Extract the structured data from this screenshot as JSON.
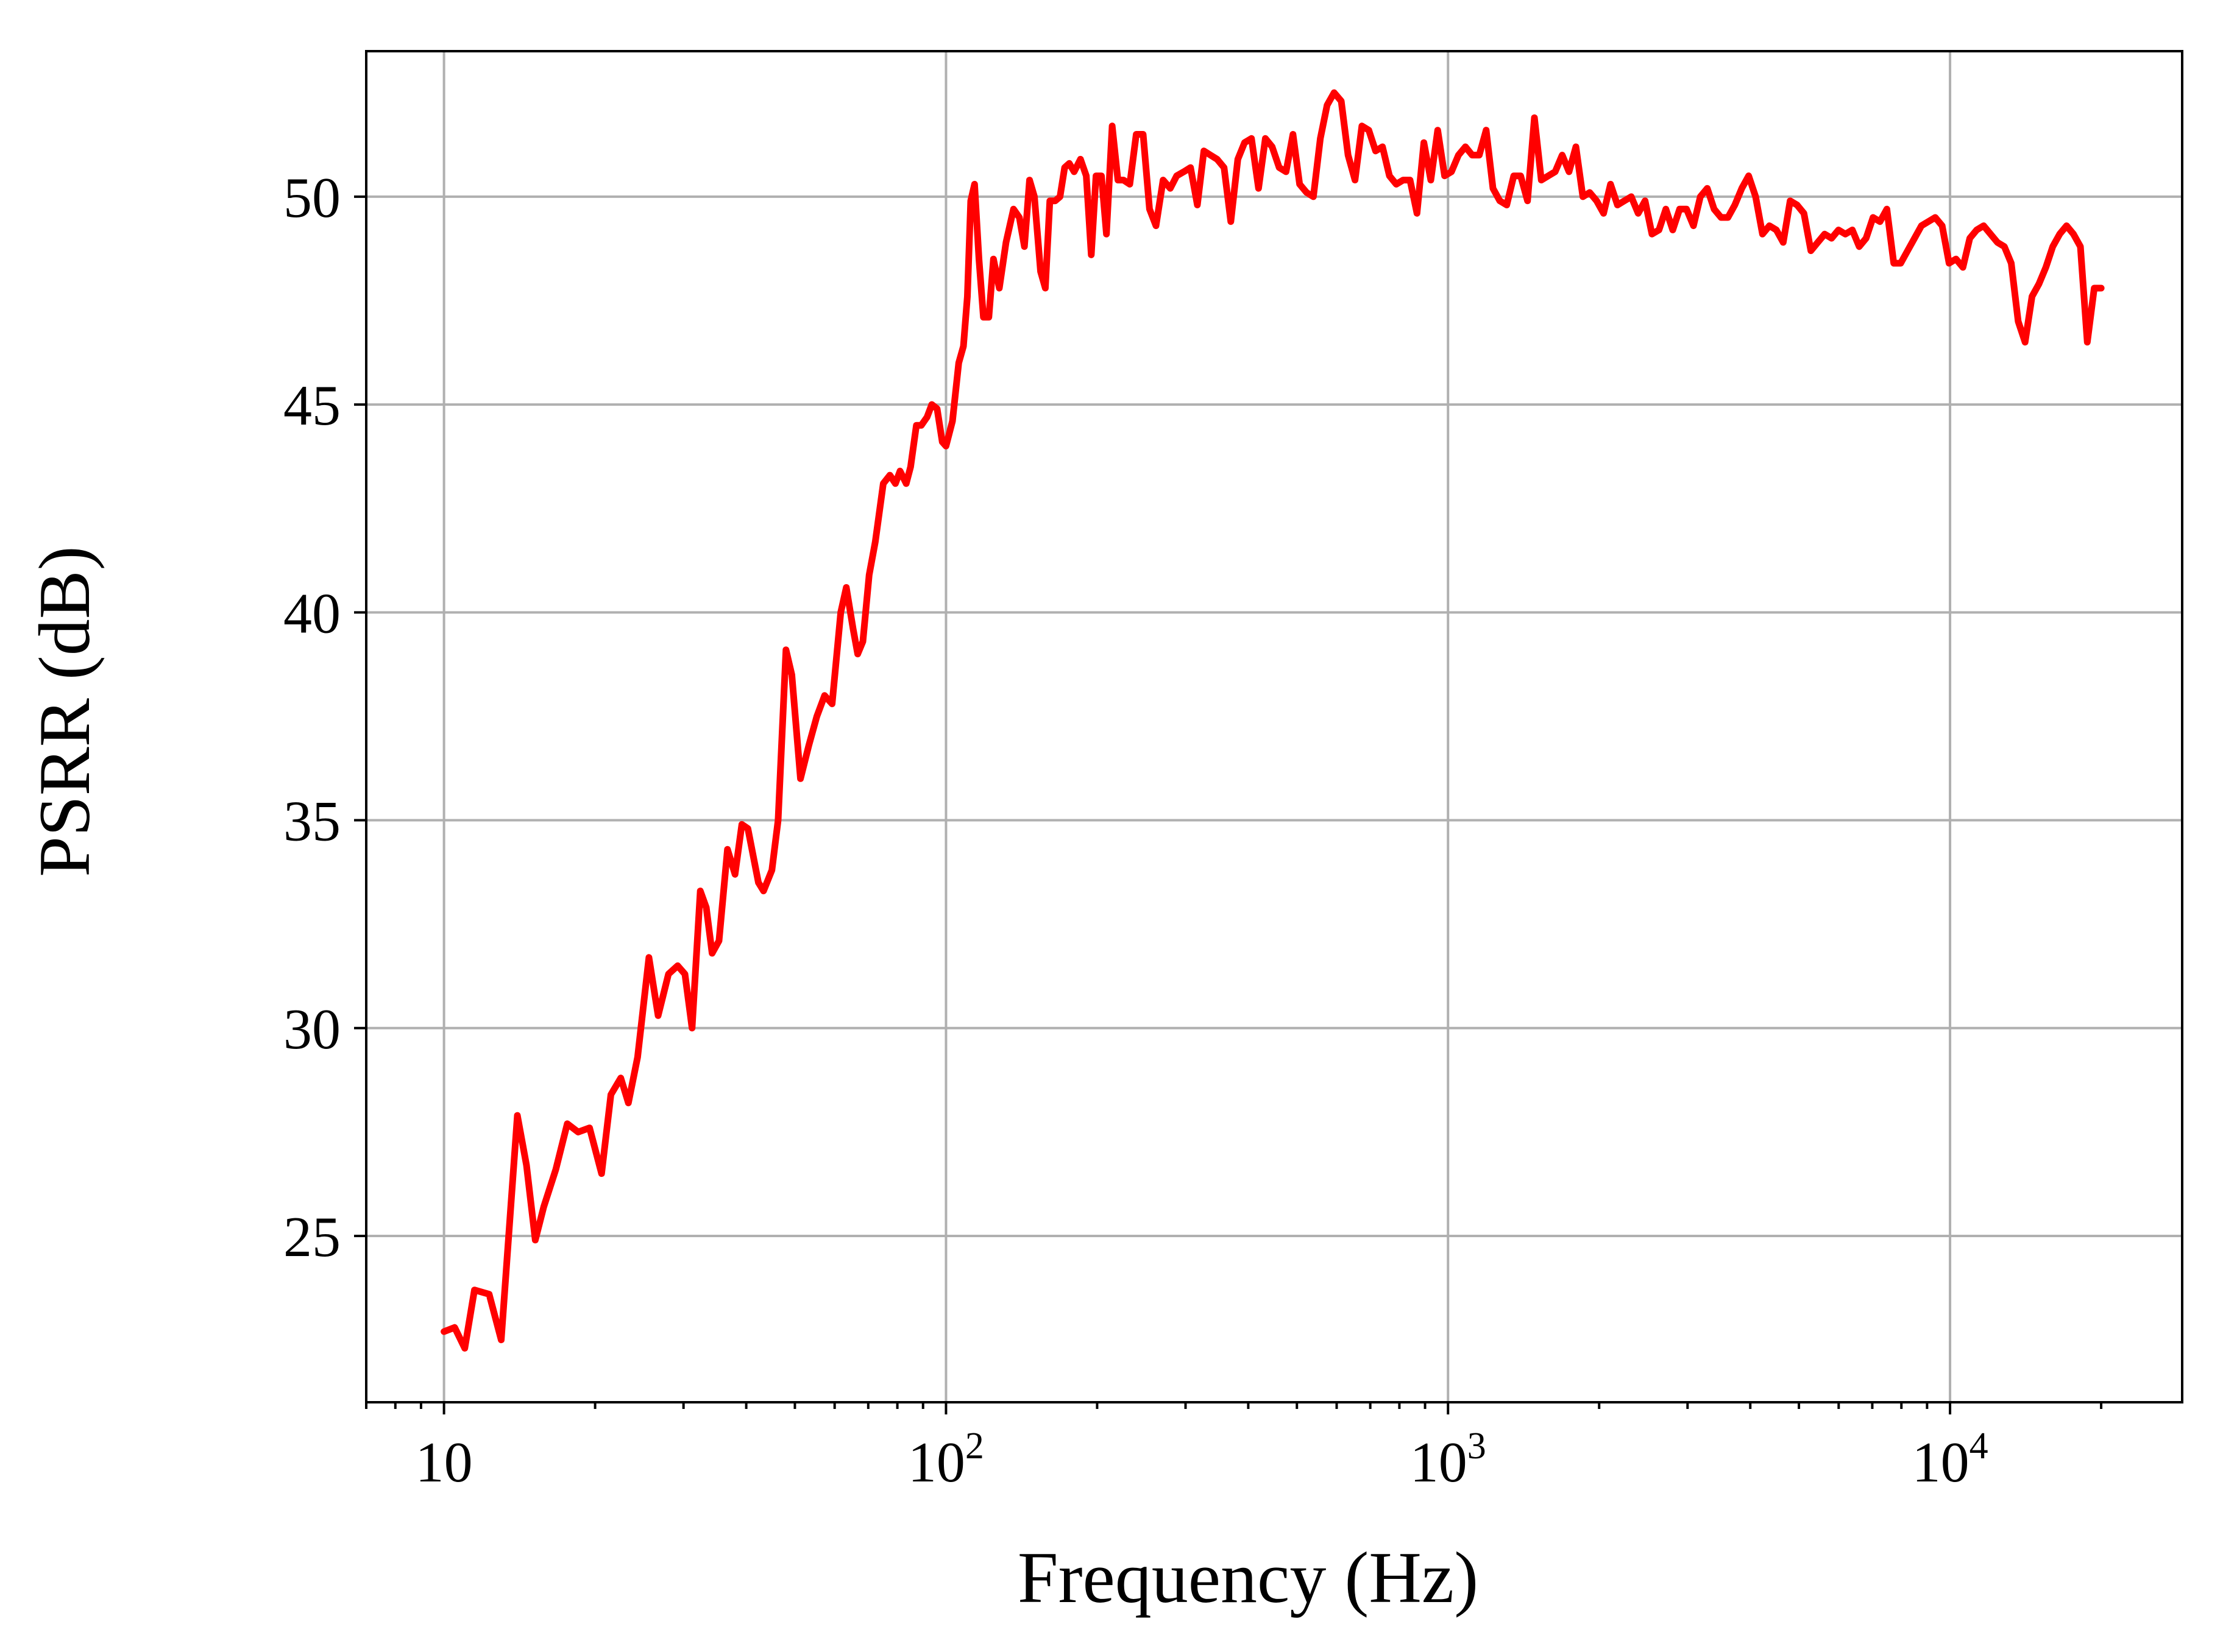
{
  "chart_data": {
    "type": "line",
    "title": "",
    "xlabel": "Frequency (Hz)",
    "ylabel": "PSRR (dB)",
    "xscale": "log",
    "xlim": [
      7,
      29000
    ],
    "ylim": [
      21,
      53.5
    ],
    "grid": true,
    "legend": "none",
    "x_ticks": [
      {
        "value": 10,
        "base": "10",
        "exp": ""
      },
      {
        "value": 100,
        "base": "10",
        "exp": "2"
      },
      {
        "value": 1000,
        "base": "10",
        "exp": "3"
      },
      {
        "value": 10000,
        "base": "10",
        "exp": "4"
      }
    ],
    "y_ticks": [
      {
        "value": 25,
        "label": "25"
      },
      {
        "value": 30,
        "label": "30"
      },
      {
        "value": 35,
        "label": "35"
      },
      {
        "value": 40,
        "label": "40"
      },
      {
        "value": 45,
        "label": "45"
      },
      {
        "value": 50,
        "label": "50"
      }
    ],
    "series": [
      {
        "color": "#ff0000",
        "points": [
          [
            10.0,
            22.7
          ],
          [
            10.5,
            22.8
          ],
          [
            11.0,
            22.3
          ],
          [
            11.5,
            23.7
          ],
          [
            12.3,
            23.6
          ],
          [
            13.0,
            22.5
          ],
          [
            14.0,
            27.9
          ],
          [
            14.6,
            26.7
          ],
          [
            15.2,
            24.9
          ],
          [
            15.8,
            25.7
          ],
          [
            16.7,
            26.6
          ],
          [
            17.6,
            27.7
          ],
          [
            18.5,
            27.5
          ],
          [
            19.5,
            27.6
          ],
          [
            20.6,
            26.5
          ],
          [
            21.5,
            28.4
          ],
          [
            22.5,
            28.8
          ],
          [
            23.3,
            28.2
          ],
          [
            24.3,
            29.3
          ],
          [
            25.6,
            31.7
          ],
          [
            26.7,
            30.3
          ],
          [
            28.0,
            31.3
          ],
          [
            29.2,
            31.5
          ],
          [
            30.2,
            31.3
          ],
          [
            31.2,
            30.0
          ],
          [
            32.4,
            33.3
          ],
          [
            33.3,
            32.9
          ],
          [
            34.2,
            31.8
          ],
          [
            35.3,
            32.1
          ],
          [
            36.7,
            34.3
          ],
          [
            38.0,
            33.7
          ],
          [
            39.2,
            34.9
          ],
          [
            40.3,
            34.8
          ],
          [
            42.3,
            33.5
          ],
          [
            43.3,
            33.3
          ],
          [
            45.0,
            33.8
          ],
          [
            46.3,
            35.0
          ],
          [
            48.0,
            39.1
          ],
          [
            49.3,
            38.5
          ],
          [
            51.3,
            36.0
          ],
          [
            53.3,
            36.8
          ],
          [
            55.3,
            37.5
          ],
          [
            57.3,
            38.0
          ],
          [
            59.3,
            37.8
          ],
          [
            61.7,
            40.0
          ],
          [
            63.3,
            40.6
          ],
          [
            65.3,
            39.6
          ],
          [
            66.7,
            39.0
          ],
          [
            68.3,
            39.3
          ],
          [
            70.3,
            40.9
          ],
          [
            72.3,
            41.7
          ],
          [
            75.0,
            43.1
          ],
          [
            77.3,
            43.3
          ],
          [
            79.3,
            43.1
          ],
          [
            81.0,
            43.4
          ],
          [
            83.3,
            43.1
          ],
          [
            85.0,
            43.5
          ],
          [
            87.3,
            44.5
          ],
          [
            89.3,
            44.5
          ],
          [
            91.7,
            44.7
          ],
          [
            93.7,
            45.0
          ],
          [
            96.0,
            44.9
          ],
          [
            98.3,
            44.1
          ],
          [
            100.0,
            44.0
          ],
          [
            103.0,
            44.6
          ],
          [
            106.0,
            46.0
          ],
          [
            108.3,
            46.4
          ],
          [
            110.3,
            47.6
          ],
          [
            112.0,
            49.9
          ],
          [
            114.0,
            50.3
          ],
          [
            116.3,
            48.5
          ],
          [
            118.7,
            47.1
          ],
          [
            121.7,
            47.1
          ],
          [
            124.3,
            48.5
          ],
          [
            127.7,
            47.8
          ],
          [
            131.7,
            48.9
          ],
          [
            136.3,
            49.7
          ],
          [
            140.0,
            49.5
          ],
          [
            143.3,
            48.8
          ],
          [
            146.7,
            50.4
          ],
          [
            150.0,
            50.0
          ],
          [
            154.3,
            48.2
          ],
          [
            157.7,
            47.8
          ],
          [
            161.0,
            49.9
          ],
          [
            165.0,
            49.9
          ],
          [
            168.7,
            50.0
          ],
          [
            172.3,
            50.7
          ],
          [
            176.0,
            50.8
          ],
          [
            180.0,
            50.6
          ],
          [
            185.3,
            50.9
          ],
          [
            190.3,
            50.5
          ],
          [
            194.7,
            48.6
          ],
          [
            199.0,
            50.5
          ],
          [
            204.0,
            50.5
          ],
          [
            208.7,
            49.1
          ],
          [
            214.3,
            51.7
          ],
          [
            220.0,
            50.4
          ],
          [
            225.7,
            50.4
          ],
          [
            232.3,
            50.3
          ],
          [
            239.3,
            51.5
          ],
          [
            247.0,
            51.5
          ],
          [
            254.3,
            49.7
          ],
          [
            262.0,
            49.3
          ],
          [
            270.7,
            50.4
          ],
          [
            279.7,
            50.2
          ],
          [
            288.0,
            50.5
          ],
          [
            297.7,
            50.6
          ],
          [
            307.0,
            50.7
          ],
          [
            316.7,
            49.8
          ],
          [
            326.3,
            51.1
          ],
          [
            336.3,
            51.0
          ],
          [
            346.7,
            50.9
          ],
          [
            358.0,
            50.7
          ],
          [
            369.3,
            49.4
          ],
          [
            381.3,
            50.9
          ],
          [
            393.3,
            51.3
          ],
          [
            406.0,
            51.4
          ],
          [
            419.3,
            50.2
          ],
          [
            432.7,
            51.4
          ],
          [
            446.3,
            51.2
          ],
          [
            461.0,
            50.7
          ],
          [
            475.7,
            50.6
          ],
          [
            491.0,
            51.5
          ],
          [
            506.3,
            50.3
          ],
          [
            522.7,
            50.1
          ],
          [
            539.3,
            50.0
          ],
          [
            556.7,
            51.4
          ],
          [
            574.3,
            52.2
          ],
          [
            593.0,
            52.5
          ],
          [
            612.7,
            52.3
          ],
          [
            632.3,
            51.0
          ],
          [
            652.7,
            50.4
          ],
          [
            673.7,
            51.7
          ],
          [
            695.3,
            51.6
          ],
          [
            717.3,
            51.1
          ],
          [
            740.3,
            51.2
          ],
          [
            764.3,
            50.5
          ],
          [
            788.7,
            50.3
          ],
          [
            814.0,
            50.4
          ],
          [
            840.0,
            50.4
          ],
          [
            867.3,
            49.6
          ],
          [
            895.0,
            51.3
          ],
          [
            924.0,
            50.4
          ],
          [
            953.7,
            51.6
          ],
          [
            984.3,
            50.5
          ],
          [
            1016.0,
            50.6
          ],
          [
            1049.0,
            51.0
          ],
          [
            1083.0,
            51.2
          ],
          [
            1117.0,
            51.0
          ],
          [
            1154.0,
            51.0
          ],
          [
            1191.0,
            51.6
          ],
          [
            1229.0,
            50.2
          ],
          [
            1268.0,
            49.9
          ],
          [
            1309.0,
            49.8
          ],
          [
            1352.0,
            50.5
          ],
          [
            1395.0,
            50.5
          ],
          [
            1440.0,
            49.9
          ],
          [
            1486.0,
            51.9
          ],
          [
            1534.0,
            50.4
          ],
          [
            1584.0,
            50.5
          ],
          [
            1635.0,
            50.6
          ],
          [
            1688.0,
            51.0
          ],
          [
            1742.0,
            50.6
          ],
          [
            1798.0,
            51.2
          ],
          [
            1856.0,
            50.0
          ],
          [
            1915.0,
            50.1
          ],
          [
            1977.0,
            49.9
          ],
          [
            2041.0,
            49.6
          ],
          [
            2107.0,
            50.3
          ],
          [
            2175.0,
            49.8
          ],
          [
            2245.0,
            49.9
          ],
          [
            2317.0,
            50.0
          ],
          [
            2392.0,
            49.6
          ],
          [
            2469.0,
            49.9
          ],
          [
            2548.0,
            49.1
          ],
          [
            2631.0,
            49.2
          ],
          [
            2716.0,
            49.7
          ],
          [
            2803.0,
            49.2
          ],
          [
            2893.0,
            49.7
          ],
          [
            2986.0,
            49.7
          ],
          [
            3082.0,
            49.3
          ],
          [
            3181.0,
            50.0
          ],
          [
            3284.0,
            50.2
          ],
          [
            3389.0,
            49.7
          ],
          [
            3498.0,
            49.5
          ],
          [
            3611.0,
            49.5
          ],
          [
            3727.0,
            49.8
          ],
          [
            3847.0,
            50.2
          ],
          [
            3971.0,
            50.5
          ],
          [
            4099.0,
            50.0
          ],
          [
            4231.0,
            49.1
          ],
          [
            4367.0,
            49.3
          ],
          [
            4508.0,
            49.2
          ],
          [
            4653.0,
            48.9
          ],
          [
            4803.0,
            49.9
          ],
          [
            4957.0,
            49.8
          ],
          [
            5117.0,
            49.6
          ],
          [
            5282.0,
            48.7
          ],
          [
            5452.0,
            48.9
          ],
          [
            5627.0,
            49.1
          ],
          [
            5808.0,
            49.0
          ],
          [
            5995.0,
            49.2
          ],
          [
            6188.0,
            49.1
          ],
          [
            6387.0,
            49.2
          ],
          [
            6593.0,
            48.8
          ],
          [
            6805.0,
            49.0
          ],
          [
            7024.0,
            49.5
          ],
          [
            7251.0,
            49.4
          ],
          [
            7484.0,
            49.7
          ],
          [
            7725.0,
            48.4
          ],
          [
            7974.0,
            48.4
          ],
          [
            8231.0,
            48.7
          ],
          [
            8496.0,
            49.0
          ],
          [
            8769.0,
            49.3
          ],
          [
            9052.0,
            49.4
          ],
          [
            9344.0,
            49.5
          ],
          [
            9645.0,
            49.3
          ],
          [
            9955.0,
            48.4
          ],
          [
            10276.0,
            48.5
          ],
          [
            10607.0,
            48.3
          ],
          [
            10949.0,
            49.0
          ],
          [
            11301.0,
            49.2
          ],
          [
            11665.0,
            49.3
          ],
          [
            12040.0,
            49.1
          ],
          [
            12428.0,
            48.9
          ],
          [
            12828.0,
            48.8
          ],
          [
            13242.0,
            48.4
          ],
          [
            13669.0,
            47.0
          ],
          [
            14109.0,
            46.5
          ],
          [
            14563.0,
            47.6
          ],
          [
            15032.0,
            47.9
          ],
          [
            15517.0,
            48.3
          ],
          [
            16017.0,
            48.8
          ],
          [
            16533.0,
            49.1
          ],
          [
            17065.0,
            49.3
          ],
          [
            17615.0,
            49.1
          ],
          [
            18182.0,
            48.8
          ],
          [
            18768.0,
            46.5
          ],
          [
            19373.0,
            47.8
          ],
          [
            20000.0,
            47.8
          ]
        ]
      }
    ]
  }
}
